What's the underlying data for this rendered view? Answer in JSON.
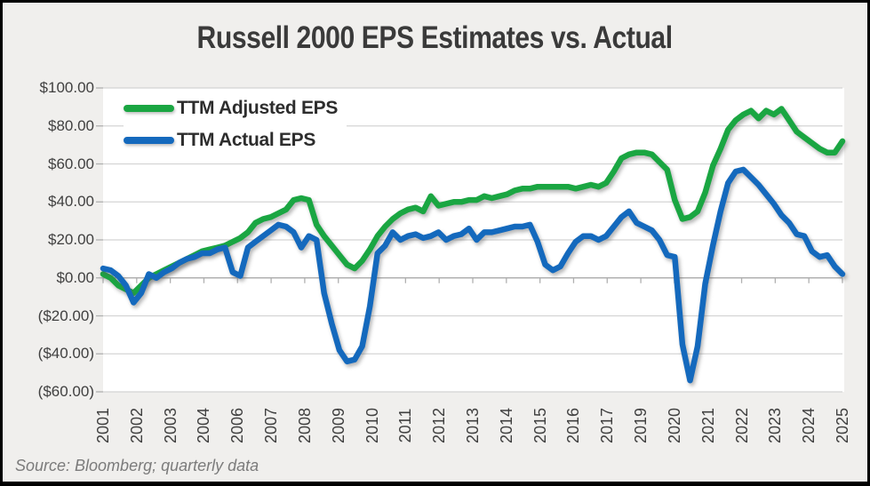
{
  "chart_data": {
    "type": "line",
    "title": "Russell 2000 EPS Estimates vs. Actual",
    "source": "Source: Bloomberg; quarterly data",
    "x_unit": "quarter",
    "x_labels": [
      "2001",
      "2002",
      "2003",
      "2004",
      "2006",
      "2007",
      "2008",
      "2009",
      "2010",
      "2011",
      "2012",
      "2013",
      "2014",
      "2015",
      "2016",
      "2017",
      "2019",
      "2020",
      "2021",
      "2022",
      "2023",
      "2024",
      "2025"
    ],
    "y_tick_labels": [
      "$100.00",
      "$80.00",
      "$60.00",
      "$40.00",
      "$20.00",
      "$0.00",
      "($20.00)",
      "($40.00)",
      "($60.00)"
    ],
    "ylim": [
      -60,
      100
    ],
    "y_step": 20,
    "grid": "horizontal",
    "legend_position": "top-left-inside",
    "colors": {
      "adjusted": "#1aa642",
      "actual": "#1469bd",
      "gridline": "#d4d4d4",
      "zero_axis": "#b0b0b0",
      "background": "#f0efed",
      "plot_background": "#ffffff"
    },
    "series": [
      {
        "name": "TTM Adjusted EPS",
        "color": "#1aa642",
        "values": [
          2,
          0,
          -4,
          -6,
          -8,
          -4,
          0,
          2,
          4,
          6,
          8,
          10,
          12,
          14,
          15,
          16,
          17,
          19,
          21,
          24,
          29,
          31,
          32,
          34,
          36,
          41,
          42,
          41,
          28,
          22,
          17,
          12,
          7,
          5,
          9,
          15,
          22,
          27,
          31,
          34,
          36,
          37,
          35,
          43,
          38,
          39,
          40,
          40,
          41,
          41,
          43,
          42,
          43,
          44,
          46,
          47,
          47,
          48,
          48,
          48,
          48,
          48,
          47,
          48,
          49,
          48,
          50,
          56,
          63,
          65,
          66,
          66,
          65,
          61,
          57,
          41,
          31,
          32,
          35,
          45,
          59,
          68,
          78,
          83,
          86,
          88,
          84,
          88,
          86,
          89,
          83,
          77,
          74,
          71,
          68,
          66,
          66,
          72
        ]
      },
      {
        "name": "TTM Actual EPS",
        "color": "#1469bd",
        "values": [
          5,
          4,
          1,
          -4,
          -13,
          -8,
          2,
          0,
          3,
          5,
          8,
          10,
          11,
          13,
          13,
          15,
          16,
          3,
          1,
          16,
          19,
          22,
          25,
          28,
          27,
          24,
          16,
          22,
          20,
          -8,
          -24,
          -38,
          -44,
          -43,
          -36,
          -15,
          13,
          17,
          24,
          20,
          22,
          23,
          21,
          22,
          24,
          20,
          22,
          23,
          26,
          20,
          24,
          24,
          25,
          26,
          27,
          27,
          28,
          19,
          7,
          4,
          6,
          13,
          19,
          22,
          22,
          20,
          22,
          27,
          32,
          35,
          29,
          27,
          25,
          20,
          12,
          11,
          -35,
          -54,
          -36,
          -3,
          17,
          35,
          50,
          56,
          57,
          53,
          49,
          44,
          39,
          33,
          29,
          23,
          22,
          14,
          11,
          12,
          6,
          2
        ]
      }
    ]
  }
}
